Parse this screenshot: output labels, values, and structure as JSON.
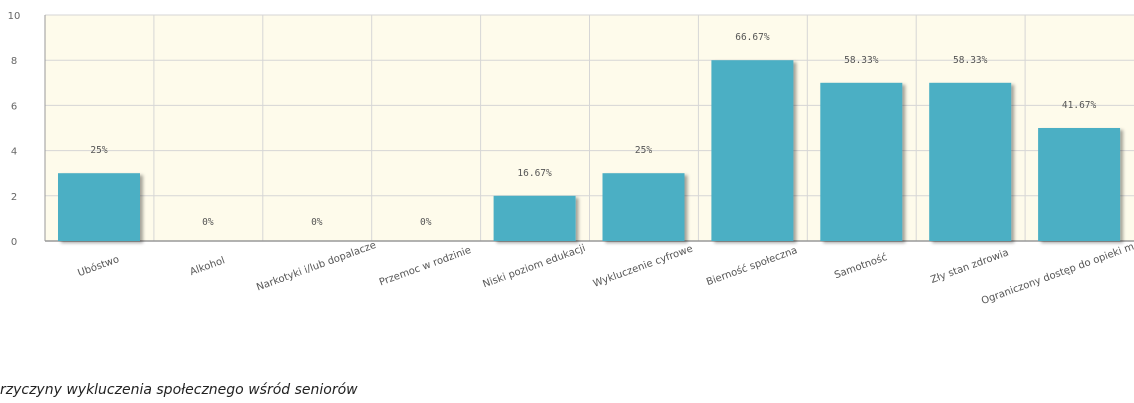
{
  "caption": "rzyczyny wykluczenia społecznego wśród seniorów",
  "colors": {
    "bar": "#4cafc4",
    "plot_bg": "#fefbeb",
    "grid": "#d6d6d6",
    "axis": "#999999"
  },
  "chart_data": {
    "type": "bar",
    "categories": [
      "Ubóstwo",
      "Alkohol",
      "Narkotyki i/lub dopalacze",
      "Przemoc w rodzinie",
      "Niski poziom edukacji",
      "Wykluczenie cyfrowe",
      "Bierność społeczna",
      "Samotność",
      "Zły stan zdrowia",
      "Ograniczony dostęp do opieki medycznej"
    ],
    "values": [
      3,
      0,
      0,
      0,
      2,
      3,
      8,
      7,
      7,
      5
    ],
    "data_labels": [
      "25%",
      "0%",
      "0%",
      "0%",
      "16.67%",
      "25%",
      "66.67%",
      "58.33%",
      "58.33%",
      "41.67%"
    ],
    "y_ticks": [
      "0",
      "2",
      "4",
      "6",
      "8",
      "10"
    ],
    "ylim": [
      0,
      10
    ],
    "grid": true
  }
}
